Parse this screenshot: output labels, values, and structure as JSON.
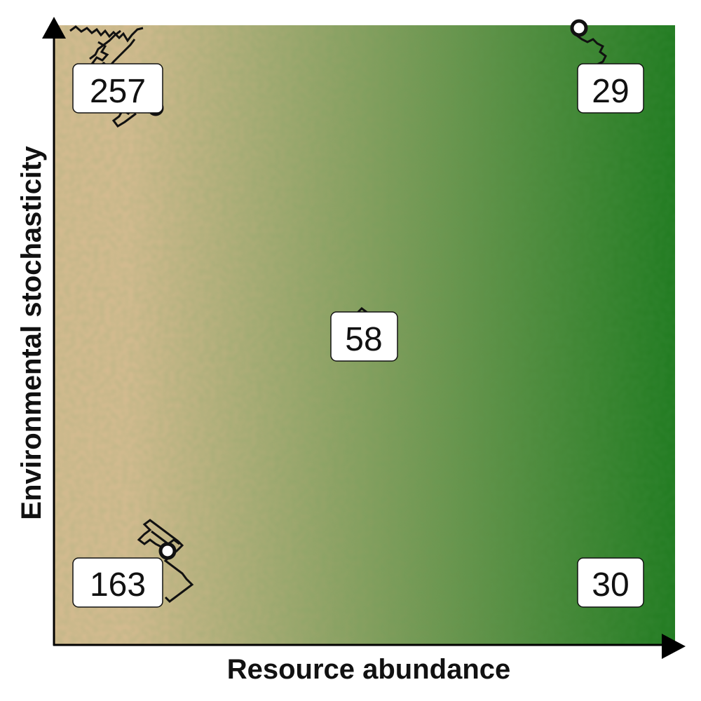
{
  "axes": {
    "x_label": "Resource abundance",
    "y_label": "Environmental stochasticity"
  },
  "colors": {
    "low_resource": "#d9bc92",
    "high_resource": "#1f7a1f",
    "trajectory": "#111111",
    "marker_fill": "#ffffff"
  },
  "regions": [
    {
      "name": "top-left",
      "count": "257"
    },
    {
      "name": "top-right",
      "count": "29"
    },
    {
      "name": "center",
      "count": "58"
    },
    {
      "name": "bottom-left",
      "count": "163"
    },
    {
      "name": "bottom-right",
      "count": "30"
    }
  ]
}
